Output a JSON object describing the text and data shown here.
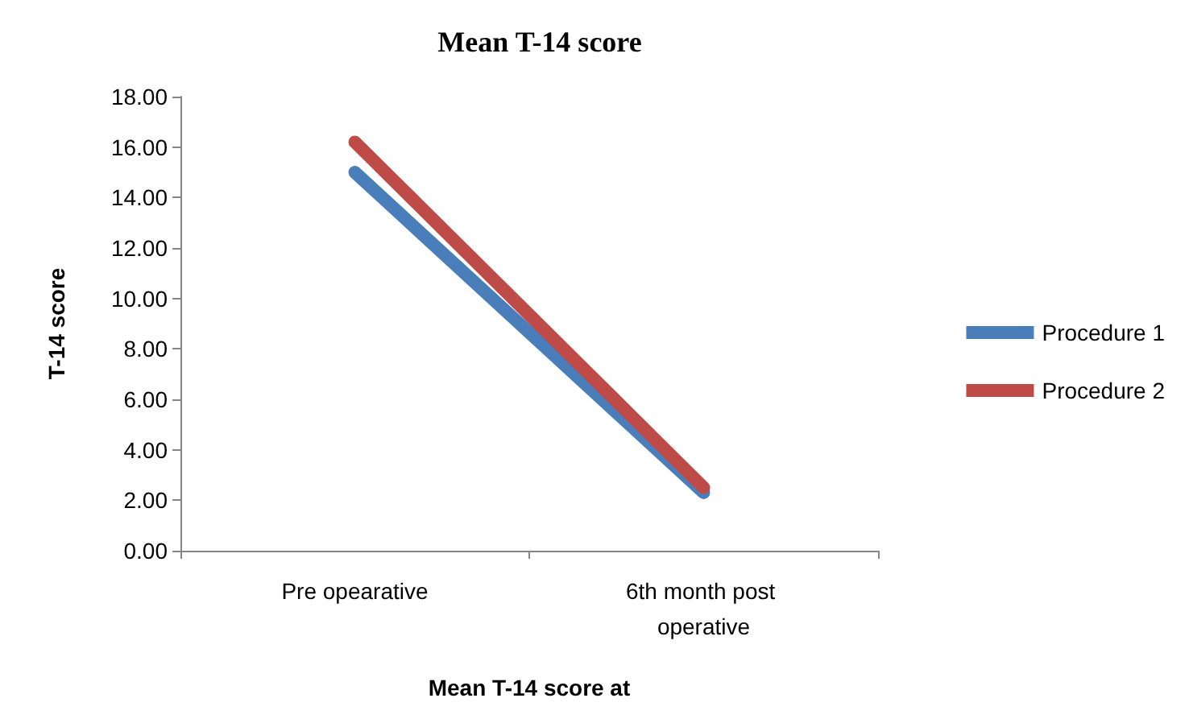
{
  "chart_data": {
    "type": "line",
    "title": "Mean T-14 score",
    "xlabel": "Mean T-14 score at",
    "ylabel": "T-14 score",
    "categories": [
      "Pre opearative",
      "6th month post operative"
    ],
    "series": [
      {
        "name": "Procedure 1",
        "color": "#4a7ebb",
        "values": [
          15.0,
          2.3
        ]
      },
      {
        "name": "Procedure 2",
        "color": "#be4b48",
        "values": [
          16.2,
          2.5
        ]
      }
    ],
    "ylim": [
      0,
      18
    ],
    "yticks": [
      {
        "value": 0,
        "label": "0.00"
      },
      {
        "value": 2,
        "label": "2.00"
      },
      {
        "value": 4,
        "label": "4.00"
      },
      {
        "value": 6,
        "label": "6.00"
      },
      {
        "value": 8,
        "label": "8.00"
      },
      {
        "value": 10,
        "label": "10.00"
      },
      {
        "value": 12,
        "label": "12.00"
      },
      {
        "value": 14,
        "label": "14.00"
      },
      {
        "value": 16,
        "label": "16.00"
      },
      {
        "value": 18,
        "label": "18.00"
      }
    ],
    "grid": false,
    "legend": "right",
    "marker": "none",
    "line_style": "solid"
  }
}
